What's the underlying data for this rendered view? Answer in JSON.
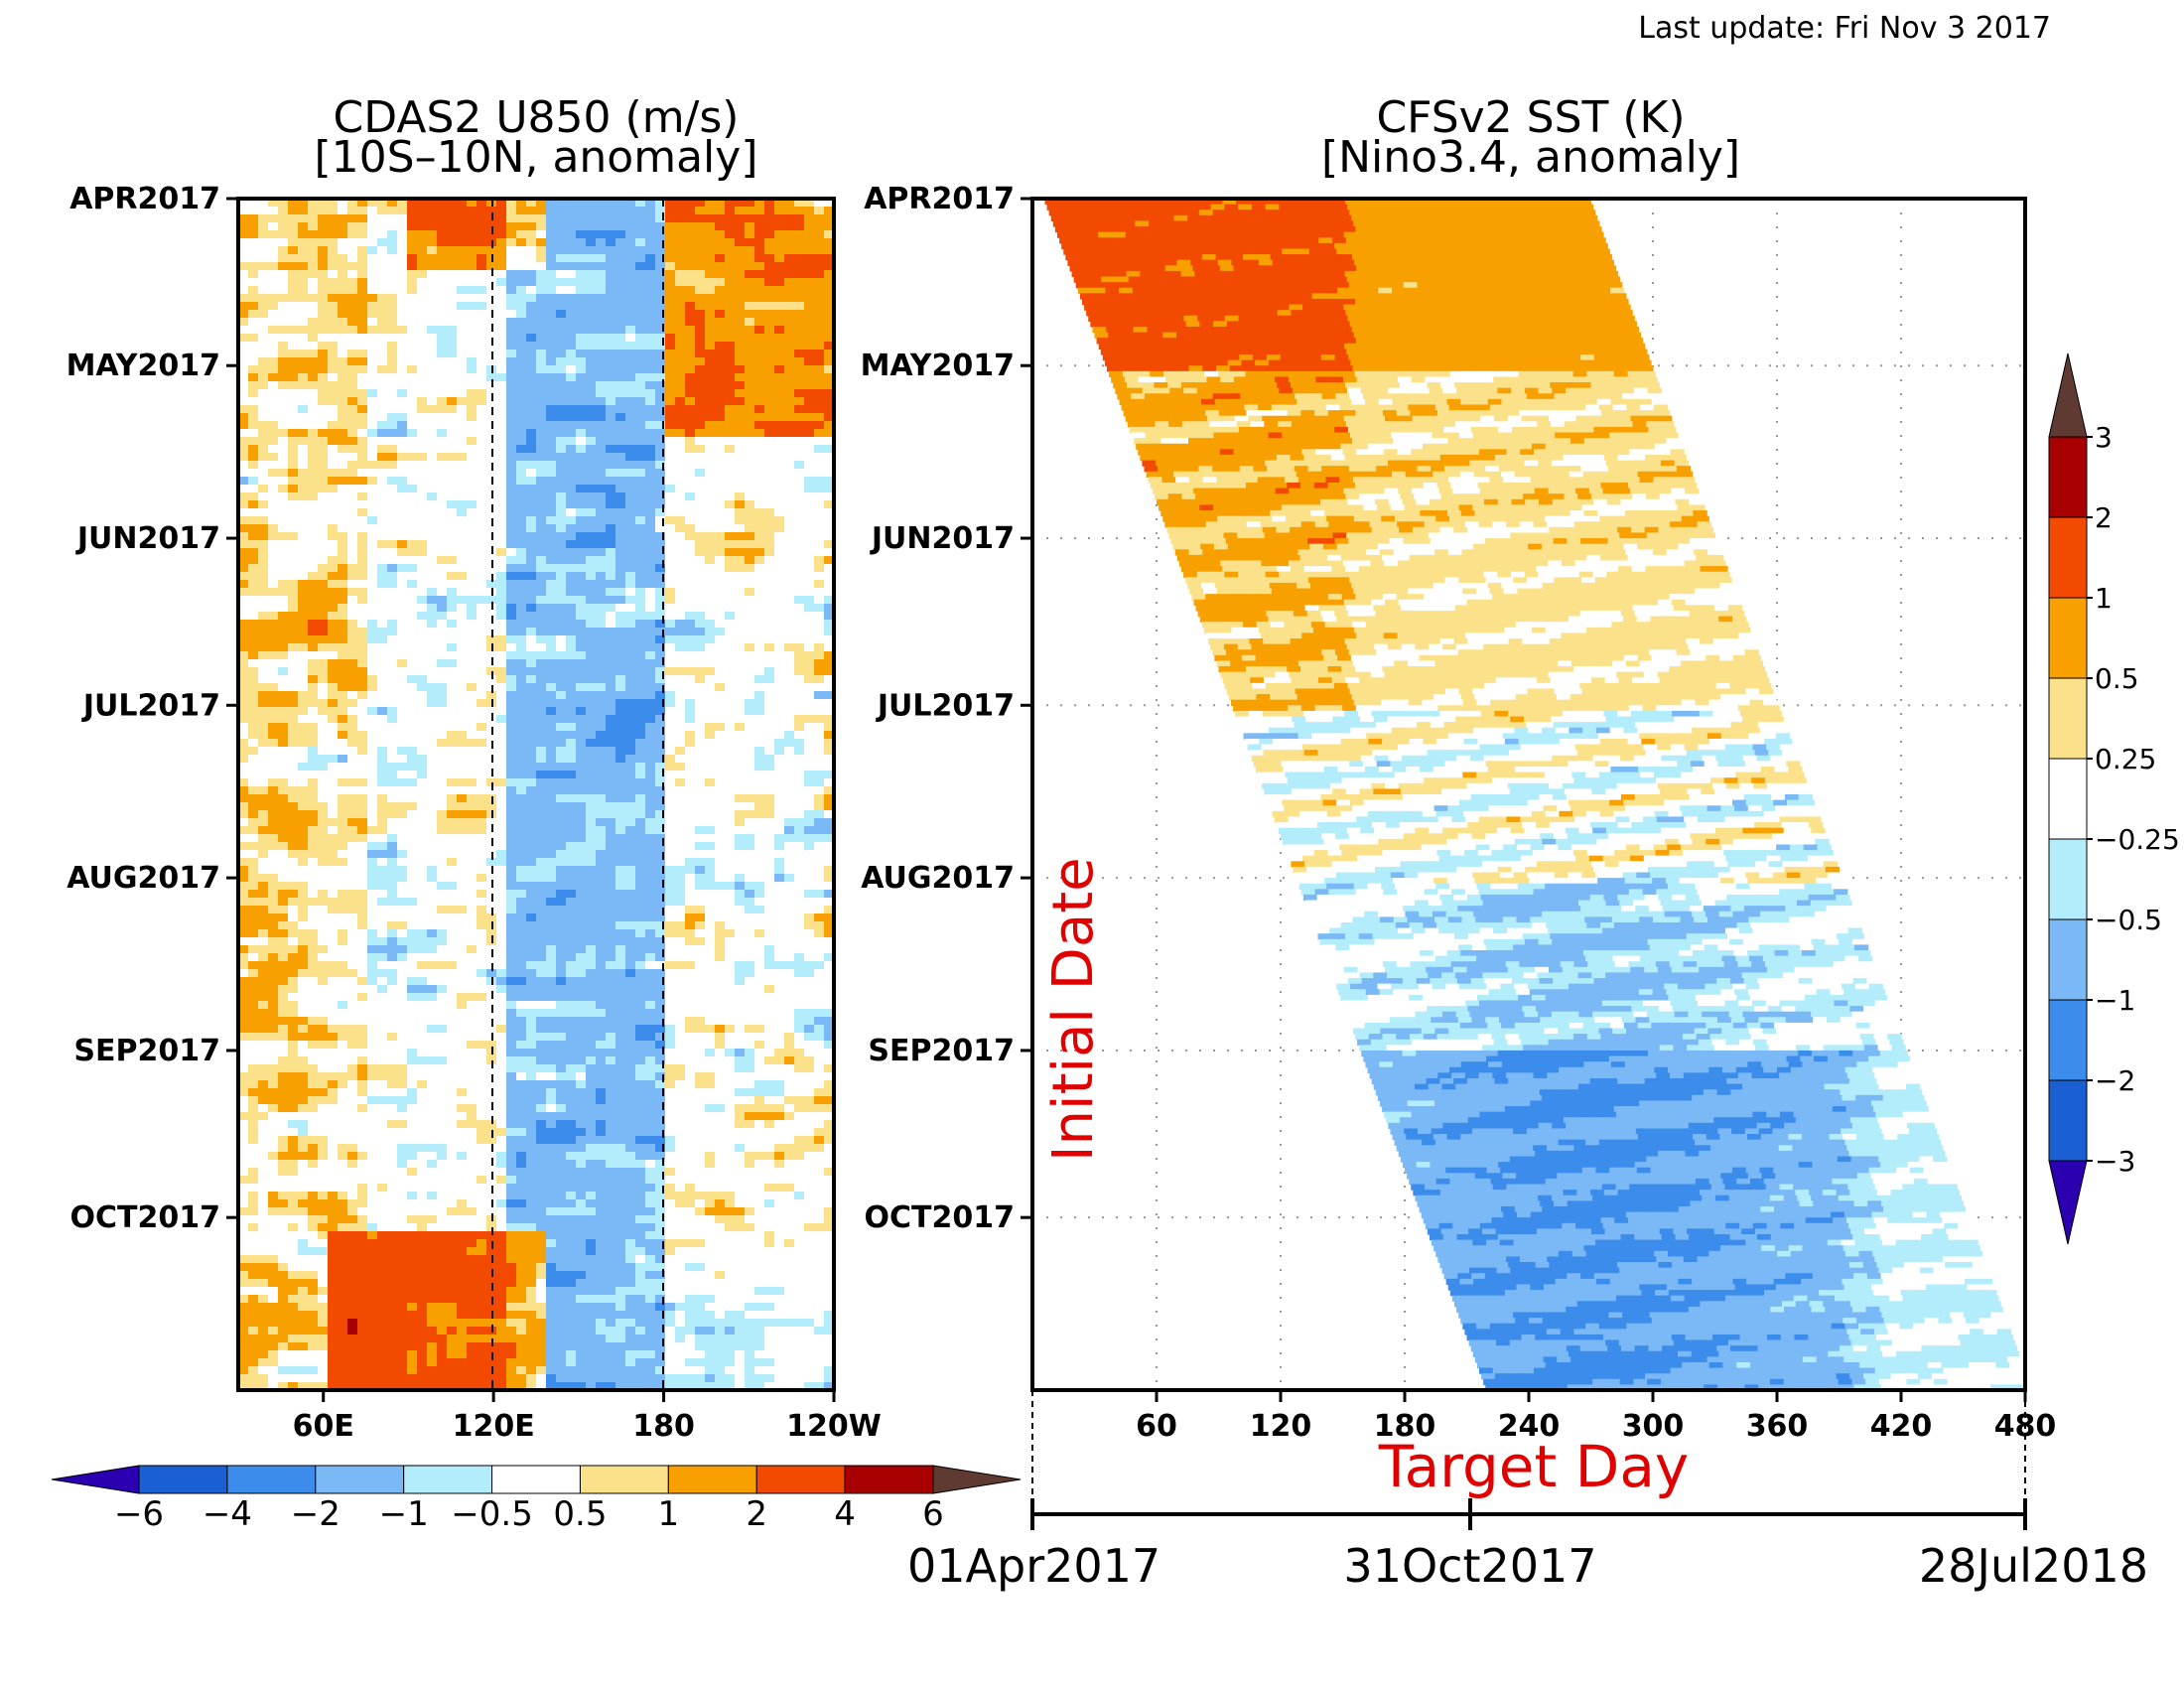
{
  "header": {
    "last_update": "Last update: Fri Nov 3 2017"
  },
  "colors": {
    "u850": [
      "#2a00b0",
      "#1a5fd4",
      "#3c8cec",
      "#7ab8f6",
      "#b3ecfa",
      "#ffffff",
      "#fbe28a",
      "#f7a000",
      "#f24a00",
      "#a80000",
      "#5e3a32"
    ],
    "sst": [
      "#2a00b0",
      "#1a5fd4",
      "#3c8cec",
      "#7ab8f6",
      "#b3ecfa",
      "#ffffff",
      "#fbe28a",
      "#f7a000",
      "#f24a00",
      "#a80000",
      "#5e3a32"
    ],
    "axis": "#000000",
    "annotation": "#e00000"
  },
  "chart_data": [
    {
      "type": "heatmap",
      "title_line1": "CDAS2 U850 (m/s)",
      "title_line2": "[10S–10N, anomaly]",
      "y_labels": [
        "APR2017",
        "MAY2017",
        "JUN2017",
        "JUL2017",
        "AUG2017",
        "SEP2017",
        "OCT2017"
      ],
      "x_labels": [
        "60E",
        "120E",
        "180",
        "120W"
      ],
      "x_range_lon": [
        30,
        240
      ],
      "x_ticks_lon": [
        60,
        120,
        180,
        240
      ],
      "dashed_lines_lon": [
        120,
        180
      ],
      "time_range": [
        "2017-04-01",
        "2017-10-31"
      ],
      "colorbar": {
        "orientation": "horizontal",
        "labels": [
          "−6",
          "−4",
          "−2",
          "−1",
          "−0.5",
          "0.5",
          "1",
          "2",
          "4",
          "6"
        ],
        "levels": [
          -6,
          -4,
          -2,
          -1,
          -0.5,
          0.5,
          1,
          2,
          4,
          6
        ]
      }
    },
    {
      "type": "heatmap",
      "title_line1": "CFSv2 SST (K)",
      "title_line2": "[Nino3.4, anomaly]",
      "y_labels": [
        "APR2017",
        "MAY2017",
        "JUN2017",
        "JUL2017",
        "AUG2017",
        "SEP2017",
        "OCT2017"
      ],
      "x_labels": [
        "60",
        "120",
        "180",
        "240",
        "300",
        "360",
        "420",
        "480"
      ],
      "x_range_days": [
        0,
        480
      ],
      "ylabel": "Initial Date",
      "xlabel": "Target Day",
      "date_axis": {
        "labels": [
          "01Apr2017",
          "31Oct2017",
          "28Jul2018"
        ],
        "days": [
          0,
          213,
          483
        ]
      },
      "grid": "dotted",
      "colorbar": {
        "orientation": "vertical",
        "labels": [
          "3",
          "2",
          "1",
          "0.5",
          "0.25",
          "−0.25",
          "−0.5",
          "−1",
          "−2",
          "−3"
        ],
        "levels": [
          3,
          2,
          1,
          0.5,
          0.25,
          -0.25,
          -0.5,
          -1,
          -2,
          -3
        ]
      },
      "regime_by_month": [
        {
          "month": "APR2017",
          "anomaly": [
            1.0,
            1.5
          ]
        },
        {
          "month": "MAY2017",
          "anomaly": [
            0.25,
            1.0
          ]
        },
        {
          "month": "JUN2017",
          "anomaly": [
            0.25,
            0.75
          ]
        },
        {
          "month": "JUL2017",
          "anomaly": [
            -0.5,
            0.5
          ]
        },
        {
          "month": "AUG2017",
          "anomaly": [
            -0.5,
            0.0
          ]
        },
        {
          "month": "SEP2017",
          "anomaly": [
            -1.0,
            -0.5
          ]
        },
        {
          "month": "OCT2017",
          "anomaly": [
            -1.0,
            -0.5
          ]
        }
      ]
    }
  ]
}
